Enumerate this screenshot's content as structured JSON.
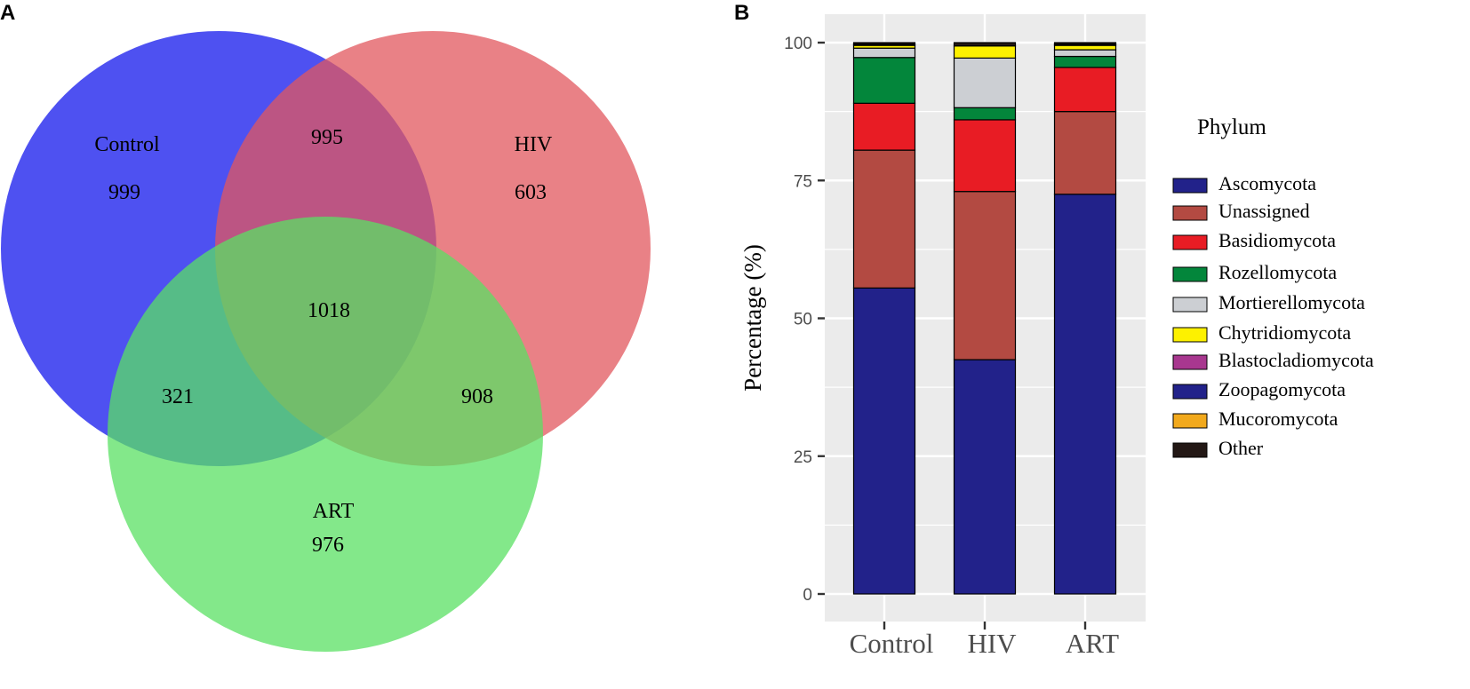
{
  "panels": {
    "venn_letter": "A",
    "bar_letter": "B"
  },
  "venn": {
    "sets": [
      {
        "name": "Control",
        "color": "#2f33ee"
      },
      {
        "name": "HIV",
        "color": "#e2575e"
      },
      {
        "name": "ART",
        "color": "#59e063"
      }
    ],
    "regions": {
      "control_only": "999",
      "hiv_only": "603",
      "art_only": "976",
      "control_hiv": "995",
      "control_art": "321",
      "hiv_art": "908",
      "all": "1018"
    }
  },
  "chart_data": {
    "type": "bar",
    "stacked": true,
    "title": "",
    "xlabel": "",
    "ylabel": "Percentage (%)",
    "ylim": [
      0,
      105
    ],
    "yticks": [
      0,
      25,
      50,
      75,
      100
    ],
    "grid": true,
    "legend_title": "Phylum",
    "legend_position": "right",
    "categories": [
      "Control",
      "HIV",
      "ART"
    ],
    "series": [
      {
        "name": "Ascomycota",
        "color": "#22228a",
        "values": [
          55.5,
          42.5,
          72.5
        ]
      },
      {
        "name": "Unassigned",
        "color": "#b34a42",
        "values": [
          25.0,
          30.5,
          15.0
        ]
      },
      {
        "name": "Basidiomycota",
        "color": "#e81c24",
        "values": [
          8.5,
          13.0,
          8.0
        ]
      },
      {
        "name": "Rozellomycota",
        "color": "#03863b",
        "values": [
          8.3,
          2.2,
          2.0
        ]
      },
      {
        "name": "Mortierellomycota",
        "color": "#cccfd3",
        "values": [
          1.7,
          9.0,
          1.2
        ]
      },
      {
        "name": "Chytridiomycota",
        "color": "#fdf100",
        "values": [
          0.5,
          2.2,
          0.8
        ]
      },
      {
        "name": "Blastocladiomycota",
        "color": "#a8378f",
        "values": [
          0.0,
          0.0,
          0.0
        ]
      },
      {
        "name": "Zoopagomycota",
        "color": "#22228a",
        "values": [
          0.0,
          0.0,
          0.0
        ]
      },
      {
        "name": "Mucoromycota",
        "color": "#f2a91c",
        "values": [
          0.2,
          0.0,
          0.2
        ]
      },
      {
        "name": "Other",
        "color": "#231815",
        "values": [
          0.3,
          0.6,
          0.3
        ]
      }
    ]
  }
}
